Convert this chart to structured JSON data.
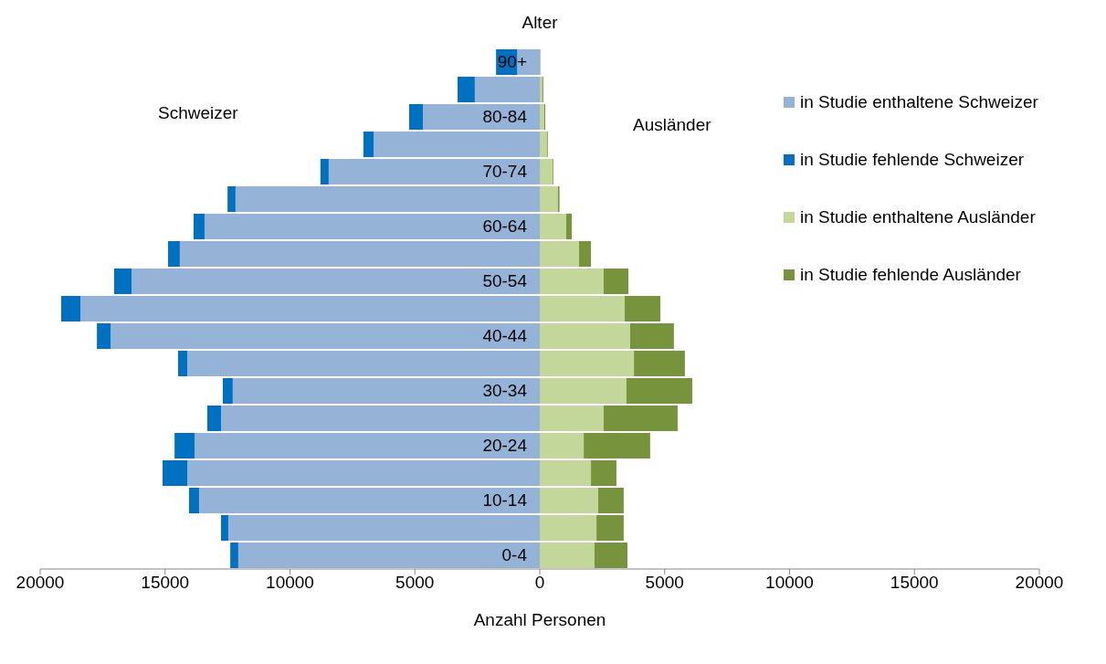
{
  "chart_data": {
    "type": "bar",
    "orientation": "horizontal",
    "stacked": true,
    "ylabel": "Alter",
    "xlabel": "Anzahl Personen",
    "annotations": [
      "Schweizer",
      "Ausländer"
    ],
    "categories": [
      "90+",
      null,
      "80-84",
      null,
      "70-74",
      null,
      "60-64",
      null,
      "50-54",
      null,
      "40-44",
      null,
      "30-34",
      null,
      "20-24",
      null,
      "10-14",
      null,
      "0-4"
    ],
    "series": [
      {
        "name": "in Studie enthaltene Schweizer",
        "color": "#95b3d7",
        "values": [
          -900,
          -2600,
          -4680,
          -6650,
          -8450,
          -12180,
          -13420,
          -14410,
          -16340,
          -18390,
          -17180,
          -14110,
          -12290,
          -12760,
          -13820,
          -14110,
          -13640,
          -12470,
          -12070
        ]
      },
      {
        "name": "in Studie fehlende Schweizer",
        "color": "#0070c0",
        "values": [
          -850,
          -690,
          -550,
          -410,
          -330,
          -320,
          -440,
          -470,
          -700,
          -770,
          -550,
          -370,
          -400,
          -550,
          -800,
          -990,
          -400,
          -290,
          -320
        ]
      },
      {
        "name": "in Studie enthaltene Ausländer",
        "color": "#c4d79b",
        "values": [
          30,
          100,
          180,
          290,
          510,
          730,
          1060,
          1570,
          2560,
          3400,
          3620,
          3770,
          3470,
          2560,
          1760,
          2050,
          2340,
          2270,
          2190
        ]
      },
      {
        "name": "in Studie fehlende Ausländer",
        "color": "#77933c",
        "values": [
          10,
          40,
          40,
          30,
          30,
          60,
          220,
          480,
          990,
          1430,
          1750,
          2040,
          2640,
          2960,
          2660,
          1020,
          1020,
          1090,
          1320
        ]
      }
    ],
    "xlim": [
      -20000,
      20000
    ],
    "xticks": [
      {
        "value": -20000,
        "label": "20000"
      },
      {
        "value": -15000,
        "label": "15000"
      },
      {
        "value": -10000,
        "label": "10000"
      },
      {
        "value": -5000,
        "label": "5000"
      },
      0,
      5000,
      10000,
      15000,
      20000
    ],
    "legend": "top right"
  }
}
